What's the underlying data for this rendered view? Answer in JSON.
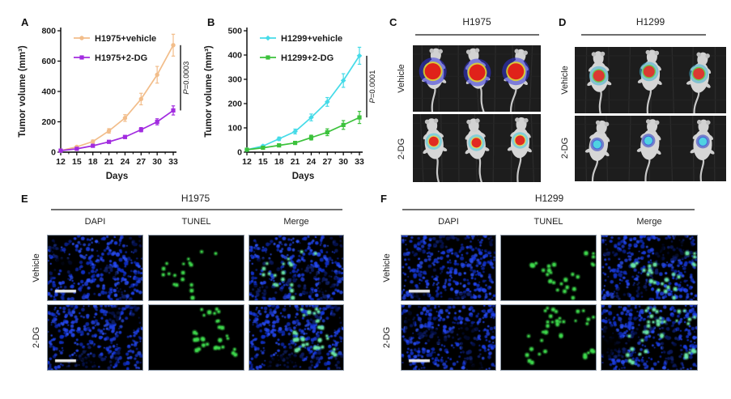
{
  "chart_data": [
    {
      "type": "line",
      "panel": "A",
      "x": [
        12,
        15,
        18,
        21,
        24,
        27,
        30,
        33
      ],
      "xlabel": "Days",
      "ylabel": "Tumor volume (mm³)",
      "ylim": [
        0,
        800
      ],
      "yticks": [
        0,
        200,
        400,
        600,
        800
      ],
      "grid": false,
      "legend_position": "top-left",
      "p_label": "P=0.0003",
      "series": [
        {
          "name": "H1975+vehicle",
          "color": "#f2bd8a",
          "marker": "circle",
          "values": [
            10,
            35,
            70,
            140,
            225,
            350,
            510,
            705
          ],
          "errors": [
            4,
            7,
            10,
            15,
            22,
            38,
            55,
            72
          ]
        },
        {
          "name": "H1975+2-DG",
          "color": "#a22ce0",
          "marker": "square",
          "values": [
            10,
            22,
            42,
            68,
            100,
            148,
            200,
            275
          ],
          "errors": [
            3,
            4,
            6,
            8,
            10,
            14,
            20,
            30
          ]
        }
      ]
    },
    {
      "type": "line",
      "panel": "B",
      "x": [
        12,
        15,
        18,
        21,
        24,
        27,
        30,
        33
      ],
      "xlabel": "Days",
      "ylabel": "Tumor volume (mm³)",
      "ylim": [
        0,
        500
      ],
      "yticks": [
        0,
        100,
        200,
        300,
        400,
        500
      ],
      "grid": false,
      "legend_position": "top-left",
      "p_label": "P=0.0001",
      "series": [
        {
          "name": "H1299+vehicle",
          "color": "#45dbe8",
          "marker": "diamond",
          "values": [
            10,
            25,
            55,
            85,
            143,
            207,
            295,
            397
          ],
          "errors": [
            3,
            5,
            7,
            10,
            14,
            18,
            28,
            35
          ]
        },
        {
          "name": "H1299+2-DG",
          "color": "#3cc23c",
          "marker": "square",
          "values": [
            10,
            18,
            28,
            38,
            60,
            82,
            112,
            143
          ],
          "errors": [
            2,
            3,
            4,
            5,
            10,
            14,
            18,
            25
          ]
        }
      ]
    }
  ],
  "mouse_panels": [
    {
      "panel": "C",
      "title": "H1975",
      "rows": [
        {
          "label": "Vehicle",
          "signal": {
            "core": "#e01818",
            "mid": "#e8d820",
            "ring": "#3333dd",
            "size": 10
          }
        },
        {
          "label": "2-DG",
          "signal": {
            "core": "#e02020",
            "mid": "#f0e040",
            "ring": "#40c8d8",
            "size": 6
          }
        }
      ]
    },
    {
      "panel": "D",
      "title": "H1299",
      "rows": [
        {
          "label": "Vehicle",
          "signal": {
            "core": "#e03030",
            "mid": "#60d040",
            "ring": "#40b0d0",
            "size": 7
          }
        },
        {
          "label": "2-DG",
          "signal": {
            "core": "#50d8e0",
            "mid": "#3860e0",
            "ring": "#2838c0",
            "size": 5
          }
        }
      ]
    }
  ],
  "micro_panels": [
    {
      "panel": "E",
      "title": "H1975",
      "columns": [
        "DAPI",
        "TUNEL",
        "Merge"
      ],
      "rows": [
        {
          "label": "Vehicle",
          "tunel_count": 18
        },
        {
          "label": "2-DG",
          "tunel_count": 30
        }
      ]
    },
    {
      "panel": "F",
      "title": "H1299",
      "columns": [
        "DAPI",
        "TUNEL",
        "Merge"
      ],
      "rows": [
        {
          "label": "Vehicle",
          "tunel_count": 26
        },
        {
          "label": "2-DG",
          "tunel_count": 36
        }
      ]
    }
  ],
  "colors": {
    "background": "#ffffff",
    "axis": "#000000",
    "dapi_blue": "#1a3de0",
    "tunel_green": "#3fdc4e",
    "merge_green": "#6ce9a8"
  }
}
